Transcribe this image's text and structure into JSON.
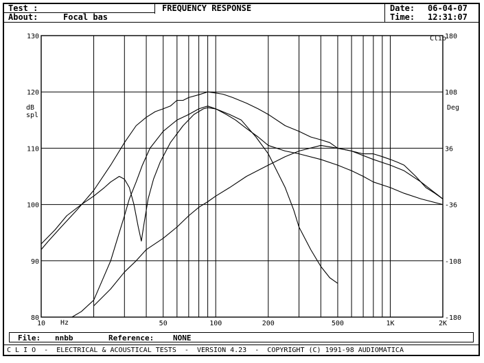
{
  "header": {
    "test_label": "Test :",
    "test_value": "",
    "about_label": "About:",
    "about_value": "Focal bas",
    "title": "FREQUENCY RESPONSE",
    "date_label": "Date:",
    "date_value": "06-04-07",
    "time_label": "Time:",
    "time_value": "12:31:07"
  },
  "footer": {
    "file_label": "File:",
    "file_value": "nnbb",
    "reference_label": "Reference:",
    "reference_value": "NONE",
    "bottom_text": "C L I O  -  ELECTRICAL & ACOUSTICAL TESTS  -  VERSION 4.23  -  COPYRIGHT (C) 1991-98 AUDIOMATICA"
  },
  "chart_data": {
    "type": "line",
    "title": "FREQUENCY RESPONSE",
    "xlabel": "Hz",
    "ylabel": "dB spl",
    "y2label": "Deg",
    "brand": "Clio",
    "x_scale": "log",
    "xlim": [
      10,
      2000
    ],
    "ylim": [
      80,
      130
    ],
    "y2lim": [
      -180,
      180
    ],
    "grid": true,
    "x_tick_labels": [
      {
        "value": 10,
        "label": "10"
      },
      {
        "value": 50,
        "label": "50"
      },
      {
        "value": 100,
        "label": "100"
      },
      {
        "value": 200,
        "label": "200"
      },
      {
        "value": 500,
        "label": "500"
      },
      {
        "value": 1000,
        "label": "1K"
      },
      {
        "value": 2000,
        "label": "2K"
      }
    ],
    "y_ticks": [
      80,
      90,
      100,
      110,
      120,
      130
    ],
    "y2_ticks": [
      -180,
      -108,
      -36,
      36,
      108,
      180
    ],
    "series": [
      {
        "values": [
          [
            10,
            92
          ],
          [
            11,
            93.5
          ],
          [
            13,
            96
          ],
          [
            16,
            99
          ],
          [
            20,
            102.5
          ],
          [
            25,
            107
          ],
          [
            30,
            111
          ],
          [
            35,
            114
          ],
          [
            40,
            115.5
          ],
          [
            45,
            116.5
          ],
          [
            50,
            117
          ],
          [
            55,
            117.5
          ],
          [
            60,
            118.5
          ],
          [
            65,
            118.5
          ],
          [
            70,
            119
          ],
          [
            80,
            119.5
          ],
          [
            90,
            120
          ],
          [
            100,
            119.8
          ],
          [
            110,
            119.6
          ],
          [
            125,
            119
          ],
          [
            150,
            118
          ],
          [
            175,
            117
          ],
          [
            200,
            116
          ],
          [
            250,
            114
          ],
          [
            300,
            113
          ],
          [
            350,
            112
          ],
          [
            400,
            111.5
          ],
          [
            450,
            111
          ],
          [
            500,
            110
          ],
          [
            600,
            109.5
          ],
          [
            700,
            109
          ],
          [
            800,
            109
          ],
          [
            900,
            108.5
          ],
          [
            1000,
            108
          ],
          [
            1100,
            107.5
          ],
          [
            1200,
            107
          ],
          [
            1400,
            105
          ],
          [
            1600,
            103
          ],
          [
            1800,
            102
          ],
          [
            2000,
            101
          ]
        ]
      },
      {
        "values": [
          [
            10,
            93
          ],
          [
            12,
            95.5
          ],
          [
            14,
            98
          ],
          [
            17,
            100
          ],
          [
            20,
            101.5
          ],
          [
            23,
            103
          ],
          [
            25,
            104
          ],
          [
            28,
            105
          ],
          [
            30,
            104.5
          ],
          [
            32,
            103
          ],
          [
            34,
            100
          ],
          [
            36,
            96
          ],
          [
            37.5,
            93.5
          ],
          [
            39,
            97
          ],
          [
            41,
            101
          ],
          [
            44,
            104.5
          ],
          [
            48,
            107.5
          ],
          [
            55,
            111
          ],
          [
            65,
            114
          ],
          [
            75,
            116
          ],
          [
            85,
            117
          ],
          [
            90,
            117.2
          ],
          [
            100,
            117
          ],
          [
            115,
            116
          ],
          [
            130,
            115
          ],
          [
            150,
            113.5
          ],
          [
            175,
            112
          ],
          [
            200,
            110.5
          ],
          [
            250,
            109.5
          ],
          [
            300,
            109
          ],
          [
            400,
            108
          ],
          [
            500,
            107
          ],
          [
            600,
            106
          ],
          [
            700,
            105
          ],
          [
            800,
            104
          ],
          [
            1000,
            103
          ],
          [
            1200,
            102
          ],
          [
            1500,
            101
          ],
          [
            2000,
            100
          ]
        ]
      },
      {
        "values": [
          [
            15,
            80
          ],
          [
            17,
            81
          ],
          [
            20,
            83
          ],
          [
            22,
            86
          ],
          [
            25,
            90
          ],
          [
            28,
            95
          ],
          [
            30,
            98
          ],
          [
            32,
            101
          ],
          [
            35,
            104
          ],
          [
            38,
            107
          ],
          [
            42,
            110
          ],
          [
            50,
            113
          ],
          [
            60,
            115
          ],
          [
            70,
            116
          ],
          [
            80,
            117
          ],
          [
            90,
            117.5
          ],
          [
            100,
            117
          ],
          [
            120,
            116
          ],
          [
            140,
            115
          ],
          [
            170,
            112
          ],
          [
            200,
            109
          ],
          [
            250,
            103
          ],
          [
            280,
            99
          ],
          [
            300,
            96
          ],
          [
            350,
            92
          ],
          [
            400,
            89
          ],
          [
            450,
            87
          ],
          [
            500,
            86
          ]
        ]
      },
      {
        "values": [
          [
            20,
            82
          ],
          [
            25,
            85
          ],
          [
            30,
            88
          ],
          [
            35,
            90
          ],
          [
            40,
            92
          ],
          [
            50,
            94
          ],
          [
            60,
            96
          ],
          [
            70,
            98
          ],
          [
            80,
            99.5
          ],
          [
            90,
            100.5
          ],
          [
            100,
            101.5
          ],
          [
            120,
            103
          ],
          [
            150,
            105
          ],
          [
            200,
            107
          ],
          [
            250,
            108.5
          ],
          [
            300,
            109.5
          ],
          [
            400,
            110.5
          ],
          [
            500,
            110
          ],
          [
            600,
            109.5
          ],
          [
            800,
            108
          ],
          [
            1000,
            107
          ],
          [
            1200,
            106
          ],
          [
            1500,
            104
          ],
          [
            2000,
            101
          ]
        ]
      }
    ]
  }
}
